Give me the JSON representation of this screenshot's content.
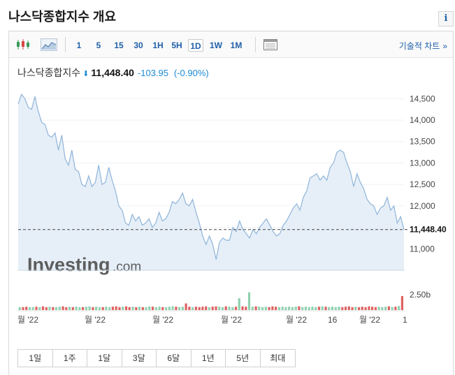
{
  "page": {
    "title": "나스닥종합지수 개요",
    "info_label": "i"
  },
  "toolbar": {
    "icons": [
      "candlestick-icon",
      "area-chart-icon",
      "table-view-icon"
    ],
    "timeframes": [
      "1",
      "5",
      "15",
      "30",
      "1H",
      "5H",
      "1D",
      "1W",
      "1M"
    ],
    "active_timeframe": "1D",
    "tech_chart_label": "기술적 차트",
    "tech_chart_chevron": "»"
  },
  "quote": {
    "name": "나스닥종합지수",
    "direction": "down",
    "arrow": "⬇",
    "price": "11,448.40",
    "change": "-103.95",
    "change_pct": "(-0.90%)"
  },
  "watermark": {
    "brand": "Investing",
    "suffix": ".com"
  },
  "range_buttons": [
    "1일",
    "1주",
    "1달",
    "3달",
    "6달",
    "1년",
    "5년",
    "최대"
  ],
  "colors": {
    "line": "#8fb4d9",
    "area_fill": "#e6eff8",
    "price_line": "#444444",
    "down": "#1c8ad6",
    "volume_up": "#8fd1b0",
    "volume_down": "#e06161",
    "link": "#1f5fa8"
  },
  "chart_data": {
    "type": "area",
    "ylim": [
      10500,
      14700
    ],
    "y_ticks": [
      11000,
      11500,
      12000,
      12500,
      13000,
      13500,
      14000,
      14500
    ],
    "y_tick_labels": [
      "11,000",
      "11,500",
      "12,000",
      "12,500",
      "13,000",
      "13,500",
      "14,000",
      "14,500"
    ],
    "last_price": 11448.4,
    "last_price_label": "11,448.40",
    "x_tick_labels": [
      "월 '22",
      "월 '22",
      "월 '22",
      "월 '22",
      "월 '22",
      "16",
      "월 '22",
      "1"
    ],
    "values": [
      14380,
      14600,
      14500,
      14300,
      14250,
      14550,
      14200,
      13950,
      13900,
      13650,
      13600,
      13700,
      13300,
      13650,
      13100,
      12950,
      13300,
      12850,
      12800,
      12500,
      12450,
      12700,
      12450,
      12550,
      12950,
      12500,
      12550,
      12900,
      12600,
      12350,
      12000,
      11900,
      11600,
      11550,
      11800,
      11650,
      11750,
      11550,
      11600,
      11700,
      11500,
      11600,
      11850,
      11650,
      11700,
      11850,
      12100,
      12050,
      12150,
      12300,
      12050,
      12000,
      12150,
      11850,
      11600,
      11300,
      11100,
      11300,
      11100,
      10750,
      11150,
      11250,
      11200,
      11200,
      11500,
      11400,
      11650,
      11450,
      11350,
      11250,
      11450,
      11350,
      11500,
      11600,
      11700,
      11550,
      11400,
      11300,
      11350,
      11550,
      11650,
      11800,
      11950,
      12050,
      11900,
      12200,
      12350,
      12650,
      12700,
      12750,
      12600,
      12700,
      12600,
      12900,
      13000,
      13250,
      13300,
      13250,
      13000,
      12800,
      12450,
      12750,
      12550,
      12400,
      12150,
      12050,
      12000,
      11800,
      11950,
      12000,
      12200,
      11900,
      12000,
      11600,
      11750,
      11448
    ],
    "volume_max": "2.50b",
    "volume": [
      0.08,
      0.08,
      0.09,
      0.08,
      0.08,
      0.09,
      0.08,
      0.1,
      0.08,
      0.09,
      0.08,
      0.08,
      0.09,
      0.1,
      0.08,
      0.09,
      0.08,
      0.09,
      0.08,
      0.08,
      0.09,
      0.1,
      0.08,
      0.09,
      0.08,
      0.08,
      0.09,
      0.08,
      0.09,
      0.1,
      0.08,
      0.09,
      0.1,
      0.08,
      0.09,
      0.08,
      0.09,
      0.08,
      0.08,
      0.1,
      0.09,
      0.08,
      0.09,
      0.08,
      0.08,
      0.09,
      0.1,
      0.09,
      0.08,
      0.09,
      0.18,
      0.09,
      0.08,
      0.09,
      0.08,
      0.09,
      0.1,
      0.08,
      0.09,
      0.1,
      0.09,
      0.08,
      0.1,
      0.09,
      0.08,
      0.09,
      0.32,
      0.1,
      0.09,
      0.48,
      0.09,
      0.1,
      0.09,
      0.08,
      0.09,
      0.08,
      0.1,
      0.09,
      0.08,
      0.09,
      0.08,
      0.09,
      0.08,
      0.09,
      0.1,
      0.08,
      0.09,
      0.08,
      0.09,
      0.08,
      0.09,
      0.1,
      0.09,
      0.08,
      0.09,
      0.08,
      0.09,
      0.08,
      0.09,
      0.1,
      0.08,
      0.09,
      0.08,
      0.09,
      0.08,
      0.1,
      0.09,
      0.08,
      0.09,
      0.08,
      0.09,
      0.1,
      0.08,
      0.09,
      0.11,
      0.38
    ],
    "volume_up": [
      1,
      0,
      0,
      1,
      1,
      0,
      1,
      0,
      0,
      1,
      0,
      1,
      1,
      0,
      0,
      1,
      0,
      1,
      1,
      0,
      1,
      1,
      0,
      1,
      1,
      0,
      1,
      1,
      0,
      0,
      0,
      1,
      0,
      0,
      1,
      0,
      1,
      0,
      1,
      1,
      0,
      1,
      1,
      0,
      1,
      1,
      1,
      0,
      1,
      1,
      0,
      0,
      1,
      0,
      0,
      0,
      0,
      1,
      0,
      0,
      1,
      1,
      0,
      1,
      1,
      0,
      1,
      0,
      0,
      1,
      1,
      0,
      1,
      1,
      1,
      0,
      0,
      0,
      1,
      1,
      1,
      1,
      1,
      1,
      0,
      1,
      1,
      1,
      1,
      1,
      0,
      1,
      0,
      1,
      1,
      1,
      1,
      0,
      0,
      0,
      0,
      1,
      0,
      0,
      0,
      0,
      0,
      0,
      1,
      1,
      1,
      0,
      1,
      0,
      1,
      0
    ]
  }
}
